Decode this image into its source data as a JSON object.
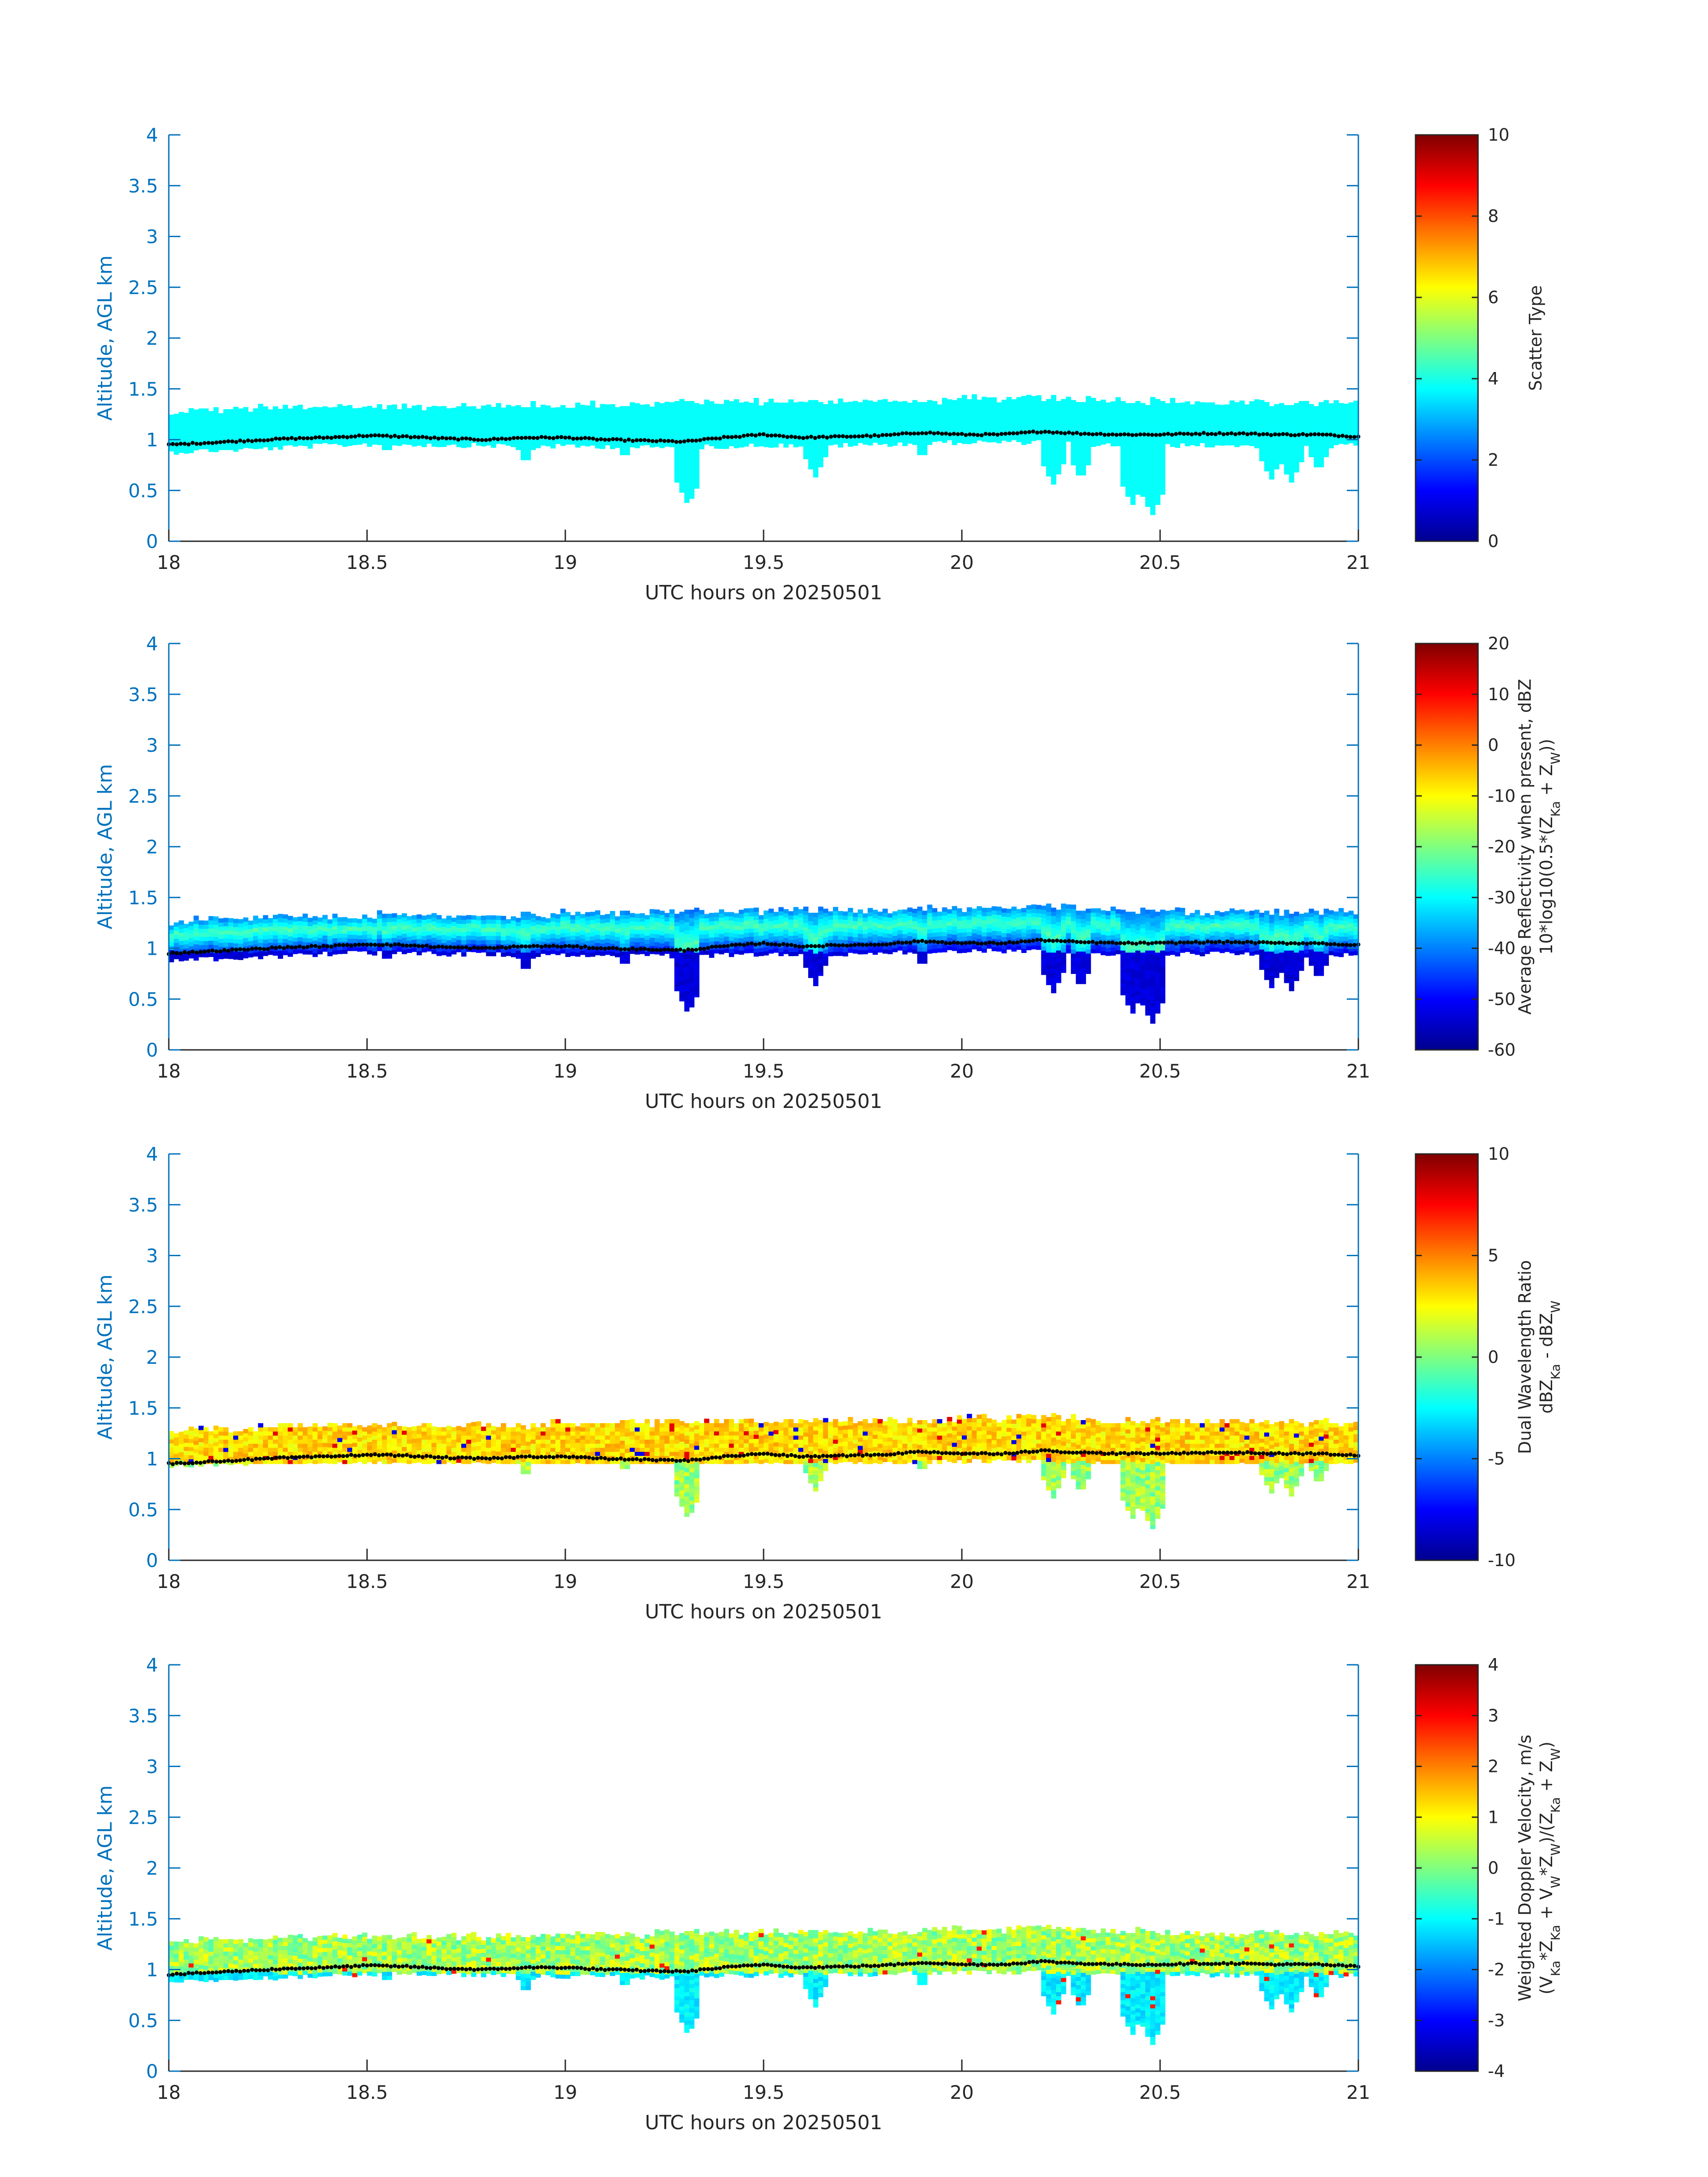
{
  "chart_data": [
    {
      "type": "heatmap",
      "xlabel": "UTC hours on 20250501",
      "ylabel": "Altitude, AGL km",
      "xlim": [
        18,
        21
      ],
      "ylim": [
        0,
        4
      ],
      "xticks": [
        "18",
        "18.5",
        "19",
        "19.5",
        "20",
        "20.5",
        "21"
      ],
      "yticks": [
        "0",
        "0.5",
        "1",
        "1.5",
        "2",
        "2.5",
        "3",
        "3.5",
        "4"
      ],
      "colorbar": {
        "label": [
          "Scatter Type"
        ],
        "clim": [
          0,
          10
        ],
        "ticks": [
          "0",
          "2",
          "4",
          "6",
          "8",
          "10"
        ],
        "colormap": "jet"
      },
      "field": "scatter_type"
    },
    {
      "type": "heatmap",
      "xlabel": "UTC hours on 20250501",
      "ylabel": "Altitude, AGL km",
      "xlim": [
        18,
        21
      ],
      "ylim": [
        0,
        4
      ],
      "xticks": [
        "18",
        "18.5",
        "19",
        "19.5",
        "20",
        "20.5",
        "21"
      ],
      "yticks": [
        "0",
        "0.5",
        "1",
        "1.5",
        "2",
        "2.5",
        "3",
        "3.5",
        "4"
      ],
      "colorbar": {
        "label": [
          "Average Reflectivity when present, dBZ",
          "10*log10(0.5*(Z_Ka + Z_W))"
        ],
        "clim": [
          -60,
          20
        ],
        "ticks": [
          "-60",
          "-50",
          "-40",
          "-30",
          "-20",
          "-10",
          "0",
          "10",
          "20"
        ],
        "colormap": "jet"
      },
      "field": "reflectivity"
    },
    {
      "type": "heatmap",
      "xlabel": "UTC hours on 20250501",
      "ylabel": "Altitude, AGL km",
      "xlim": [
        18,
        21
      ],
      "ylim": [
        0,
        4
      ],
      "xticks": [
        "18",
        "18.5",
        "19",
        "19.5",
        "20",
        "20.5",
        "21"
      ],
      "yticks": [
        "0",
        "0.5",
        "1",
        "1.5",
        "2",
        "2.5",
        "3",
        "3.5",
        "4"
      ],
      "colorbar": {
        "label": [
          "Dual Wavelength Ratio",
          "dBZ_Ka - dBZ_W"
        ],
        "clim": [
          -10,
          10
        ],
        "ticks": [
          "-10",
          "-5",
          "0",
          "5",
          "10"
        ],
        "colormap": "jet"
      },
      "field": "dwr"
    },
    {
      "type": "heatmap",
      "xlabel": "UTC hours on 20250501",
      "ylabel": "Altitude, AGL km",
      "xlim": [
        18,
        21
      ],
      "ylim": [
        0,
        4
      ],
      "xticks": [
        "18",
        "18.5",
        "19",
        "19.5",
        "20",
        "20.5",
        "21"
      ],
      "yticks": [
        "0",
        "0.5",
        "1",
        "1.5",
        "2",
        "2.5",
        "3",
        "3.5",
        "4"
      ],
      "colorbar": {
        "label": [
          "Weighted Doppler Velocity, m/s",
          "(V_Ka*Z_Ka + V_W*Z_W)/(Z_Ka + Z_W)"
        ],
        "clim": [
          -4,
          4
        ],
        "ticks": [
          "-4",
          "-3",
          "-2",
          "-1",
          "0",
          "1",
          "2",
          "3",
          "4"
        ],
        "colormap": "jet"
      },
      "field": "velocity"
    }
  ],
  "cloud_profile": {
    "x_hours": [
      18.0,
      18.1,
      18.2,
      18.3,
      18.4,
      18.5,
      18.6,
      18.7,
      18.8,
      18.9,
      19.0,
      19.1,
      19.2,
      19.3,
      19.4,
      19.5,
      19.6,
      19.7,
      19.8,
      19.9,
      20.0,
      20.1,
      20.2,
      20.3,
      20.4,
      20.5,
      20.6,
      20.7,
      20.8,
      20.9,
      21.0
    ],
    "top_km": [
      1.25,
      1.3,
      1.3,
      1.32,
      1.32,
      1.33,
      1.33,
      1.33,
      1.33,
      1.33,
      1.35,
      1.35,
      1.35,
      1.37,
      1.37,
      1.37,
      1.37,
      1.38,
      1.38,
      1.38,
      1.4,
      1.4,
      1.42,
      1.4,
      1.38,
      1.38,
      1.36,
      1.36,
      1.36,
      1.36,
      1.36
    ],
    "base_km": [
      0.9,
      0.92,
      0.93,
      0.95,
      0.97,
      0.98,
      0.98,
      0.97,
      0.97,
      0.96,
      0.96,
      0.96,
      0.95,
      0.95,
      0.96,
      0.97,
      0.97,
      0.97,
      0.98,
      0.99,
      1.0,
      1.0,
      1.0,
      0.98,
      0.97,
      0.97,
      0.97,
      0.97,
      0.96,
      0.96,
      0.97
    ],
    "dotted_line_km": [
      0.95,
      0.97,
      0.99,
      1.01,
      1.02,
      1.04,
      1.03,
      1.01,
      1.0,
      1.02,
      1.02,
      1.0,
      0.99,
      0.98,
      1.02,
      1.05,
      1.02,
      1.03,
      1.04,
      1.07,
      1.05,
      1.05,
      1.08,
      1.06,
      1.05,
      1.05,
      1.06,
      1.06,
      1.05,
      1.05,
      1.03
    ],
    "fallstreaks": [
      {
        "x": 18.15,
        "bottom_km": 0.85
      },
      {
        "x": 18.55,
        "bottom_km": 0.85
      },
      {
        "x": 18.9,
        "bottom_km": 0.75
      },
      {
        "x": 19.15,
        "bottom_km": 0.8
      },
      {
        "x": 19.31,
        "bottom_km": 0.35
      },
      {
        "x": 19.63,
        "bottom_km": 0.62
      },
      {
        "x": 19.9,
        "bottom_km": 0.8
      },
      {
        "x": 20.23,
        "bottom_km": 0.55
      },
      {
        "x": 20.3,
        "bottom_km": 0.6
      },
      {
        "x": 20.43,
        "bottom_km": 0.35
      },
      {
        "x": 20.48,
        "bottom_km": 0.25
      },
      {
        "x": 20.78,
        "bottom_km": 0.6
      },
      {
        "x": 20.83,
        "bottom_km": 0.57
      },
      {
        "x": 20.9,
        "bottom_km": 0.68
      }
    ]
  }
}
